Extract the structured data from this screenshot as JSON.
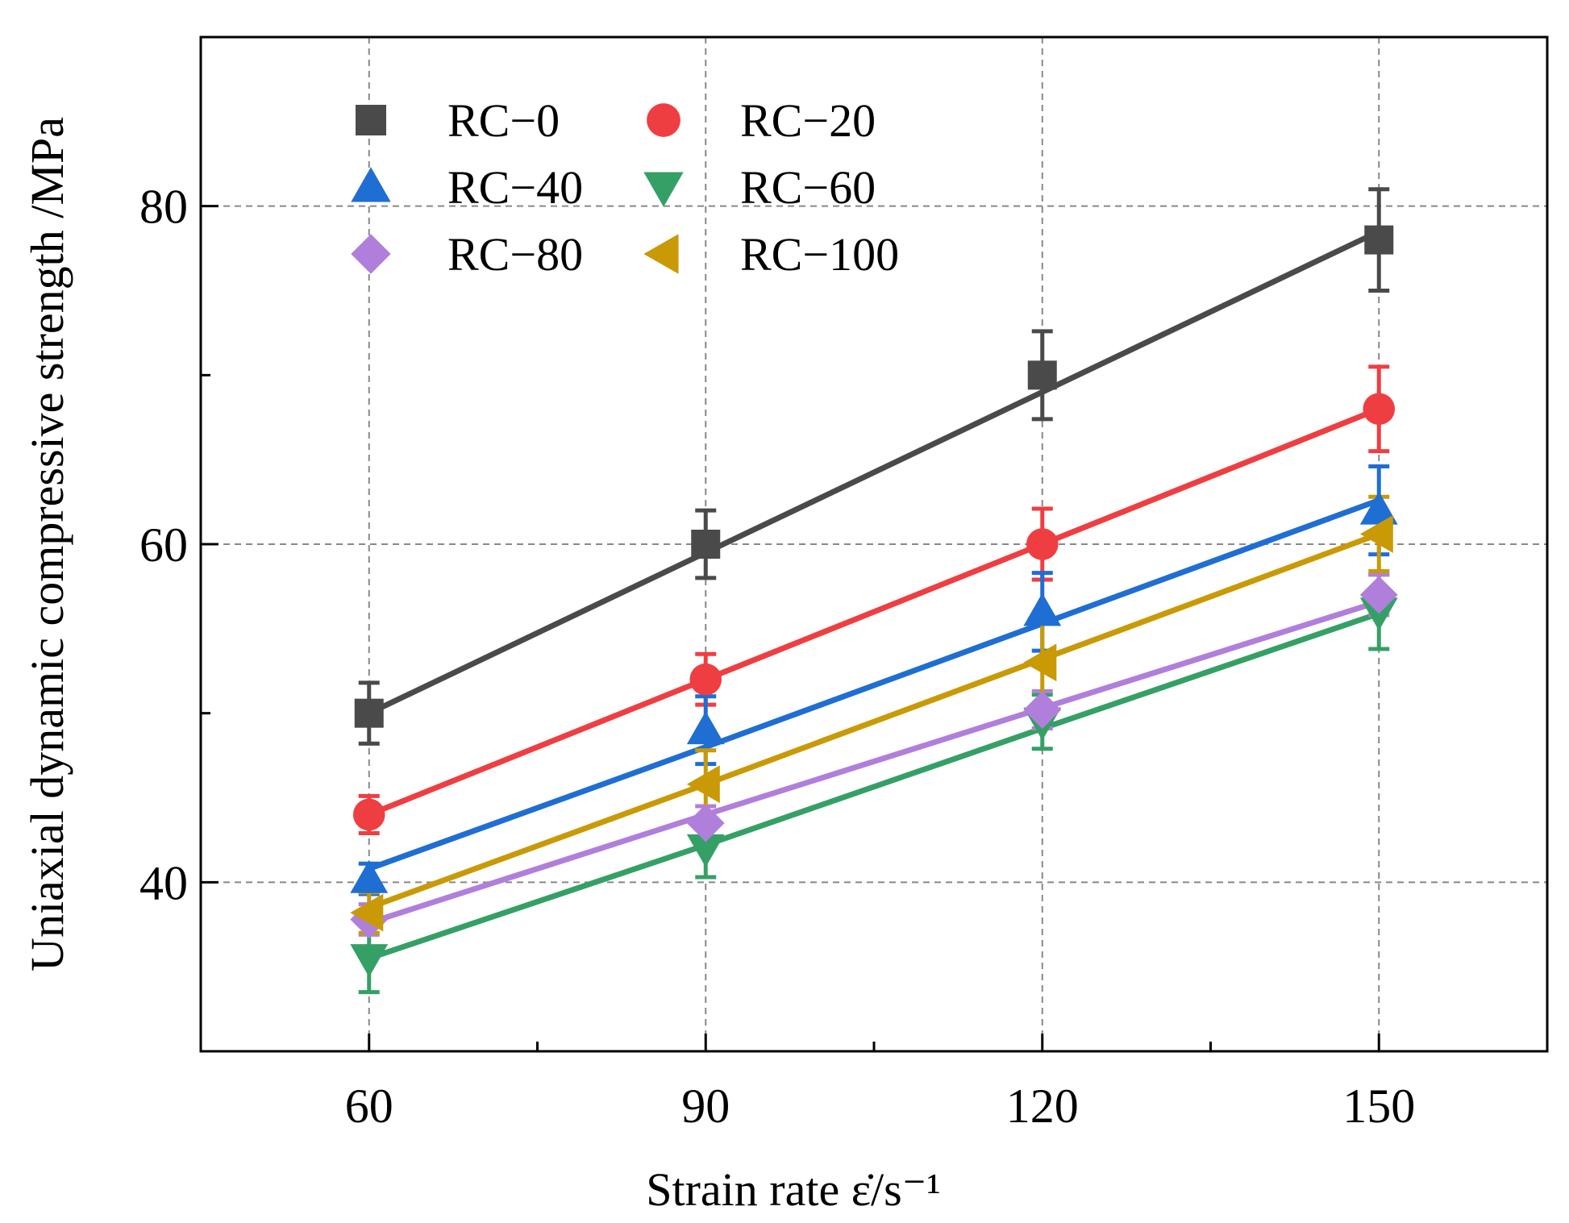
{
  "chart_data": {
    "type": "line",
    "xlabel": "Strain rate ε̇/s⁻¹",
    "ylabel": "Uniaxial dynamic compressive strength /MPa",
    "xlim": [
      45,
      165
    ],
    "ylim": [
      30,
      90
    ],
    "x_major_ticks": [
      60,
      90,
      120,
      150
    ],
    "x_minor_ticks": [
      75,
      105,
      135
    ],
    "y_major_ticks": [
      40,
      60,
      80
    ],
    "y_minor_ticks": [
      50,
      70
    ],
    "x_tick_labels": [
      "60",
      "90",
      "120",
      "150"
    ],
    "y_tick_labels": [
      "40",
      "60",
      "80"
    ],
    "grid": true,
    "legend_position": "top-left",
    "x": [
      60,
      90,
      120,
      150
    ],
    "series": [
      {
        "name": "RC−0",
        "marker": "square",
        "color": "#4a4a4a",
        "values": [
          50.0,
          60.0,
          70.0,
          78.0
        ],
        "errors": [
          1.8,
          2.0,
          2.6,
          3.0
        ],
        "fit": [
          50.0,
          59.5,
          69.0,
          78.5
        ]
      },
      {
        "name": "RC−20",
        "marker": "circle",
        "color": "#ef3e42",
        "values": [
          44.0,
          52.0,
          60.0,
          68.0
        ],
        "errors": [
          1.1,
          1.5,
          2.1,
          2.5
        ],
        "fit": [
          44.0,
          52.0,
          60.0,
          68.0
        ]
      },
      {
        "name": "RC−40",
        "marker": "triangle-up",
        "color": "#1f6ed4",
        "values": [
          40.2,
          49.0,
          56.0,
          62.0
        ],
        "errors": [
          0.9,
          2.0,
          2.3,
          2.6
        ],
        "fit": [
          40.8,
          48.0,
          55.3,
          62.6
        ]
      },
      {
        "name": "RC−60",
        "marker": "triangle-down",
        "color": "#35a066",
        "values": [
          35.5,
          42.0,
          49.5,
          56.0
        ],
        "errors": [
          2.0,
          1.7,
          1.6,
          2.2
        ],
        "fit": [
          35.5,
          42.2,
          49.1,
          55.9
        ]
      },
      {
        "name": "RC−80",
        "marker": "diamond",
        "color": "#b07fdc",
        "values": [
          37.8,
          43.5,
          50.2,
          57.0
        ],
        "errors": [
          0.9,
          1.0,
          1.1,
          1.2
        ],
        "fit": [
          37.6,
          44.0,
          50.3,
          56.6
        ]
      },
      {
        "name": "RC−100",
        "marker": "triangle-left",
        "color": "#c99a06",
        "values": [
          38.2,
          45.8,
          53.0,
          60.6
        ],
        "errors": [
          1.2,
          2.0,
          2.5,
          2.2
        ],
        "fit": [
          38.5,
          45.8,
          53.2,
          60.6
        ]
      }
    ]
  }
}
